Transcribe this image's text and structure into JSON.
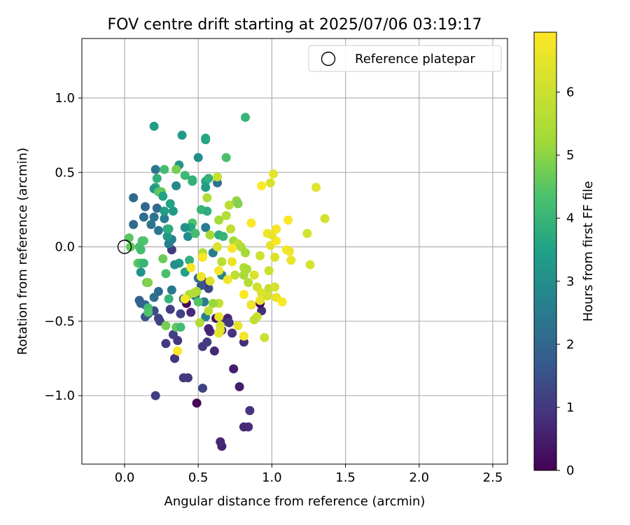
{
  "chart_data": {
    "type": "scatter",
    "title": "FOV centre drift starting at 2025/07/06 03:19:17",
    "xlabel": "Angular distance from reference (arcmin)",
    "ylabel": "Rotation from reference (arcmin)",
    "xlim": [
      -0.29,
      2.6
    ],
    "ylim": [
      -1.46,
      1.4
    ],
    "xticks": [
      0.0,
      0.5,
      1.0,
      1.5,
      2.0,
      2.5
    ],
    "xtick_labels": [
      "0.0",
      "0.5",
      "1.0",
      "1.5",
      "2.0",
      "2.5"
    ],
    "yticks": [
      -1.0,
      -0.5,
      0.0,
      0.5,
      1.0
    ],
    "ytick_labels": [
      "−1.0",
      "−0.5",
      "0.0",
      "0.5",
      "1.0"
    ],
    "grid": true,
    "legend": {
      "position": "top-right",
      "entries": [
        "Reference platepar"
      ]
    },
    "reference_point": {
      "x": 0.0,
      "y": 0.0,
      "label": "Reference platepar"
    },
    "colorbar": {
      "label": "Hours from first FF file",
      "range": [
        0,
        6.95
      ],
      "ticks": [
        0,
        1,
        2,
        3,
        4,
        5,
        6
      ],
      "tick_labels": [
        "0",
        "1",
        "2",
        "3",
        "4",
        "5",
        "6"
      ],
      "colormap": "viridis"
    },
    "points": [
      {
        "x": 0.49,
        "y": -1.05,
        "c": 0.1
      },
      {
        "x": 0.66,
        "y": -1.34,
        "c": 0.6
      },
      {
        "x": 0.65,
        "y": -1.31,
        "c": 0.7
      },
      {
        "x": 0.84,
        "y": -1.21,
        "c": 0.8
      },
      {
        "x": 0.81,
        "y": -1.21,
        "c": 0.7
      },
      {
        "x": 0.85,
        "y": -1.1,
        "c": 0.9
      },
      {
        "x": 0.78,
        "y": -0.94,
        "c": 0.5
      },
      {
        "x": 0.74,
        "y": -0.82,
        "c": 0.5
      },
      {
        "x": 0.53,
        "y": -0.95,
        "c": 1.2
      },
      {
        "x": 0.21,
        "y": -1.0,
        "c": 1.1
      },
      {
        "x": 0.4,
        "y": -0.88,
        "c": 1.0
      },
      {
        "x": 0.43,
        "y": -0.88,
        "c": 1.0
      },
      {
        "x": 0.34,
        "y": -0.75,
        "c": 0.9
      },
      {
        "x": 0.36,
        "y": -0.63,
        "c": 1.0
      },
      {
        "x": 0.28,
        "y": -0.65,
        "c": 1.0
      },
      {
        "x": 0.33,
        "y": -0.59,
        "c": 1.2
      },
      {
        "x": 0.61,
        "y": -0.7,
        "c": 0.7
      },
      {
        "x": 0.53,
        "y": -0.67,
        "c": 1.0
      },
      {
        "x": 0.56,
        "y": -0.64,
        "c": 1.1
      },
      {
        "x": 0.58,
        "y": -0.57,
        "c": 0.8
      },
      {
        "x": 0.57,
        "y": -0.55,
        "c": 0.6
      },
      {
        "x": 0.66,
        "y": -0.56,
        "c": 0.7
      },
      {
        "x": 0.73,
        "y": -0.58,
        "c": 0.9
      },
      {
        "x": 0.81,
        "y": -0.64,
        "c": 0.8
      },
      {
        "x": 0.62,
        "y": -0.48,
        "c": 0.3
      },
      {
        "x": 0.64,
        "y": -0.48,
        "c": 0.4
      },
      {
        "x": 0.7,
        "y": -0.48,
        "c": 0.6
      },
      {
        "x": 0.66,
        "y": -0.51,
        "c": 0.9
      },
      {
        "x": 0.71,
        "y": -0.51,
        "c": 1.0
      },
      {
        "x": 0.38,
        "y": -0.45,
        "c": 1.2
      },
      {
        "x": 0.45,
        "y": -0.44,
        "c": 0.7
      },
      {
        "x": 0.42,
        "y": -0.38,
        "c": 0.1
      },
      {
        "x": 0.31,
        "y": -0.42,
        "c": 1.1
      },
      {
        "x": 0.2,
        "y": -0.43,
        "c": 1.4
      },
      {
        "x": 0.23,
        "y": -0.48,
        "c": 1.3
      },
      {
        "x": 0.24,
        "y": -0.5,
        "c": 1.2
      },
      {
        "x": 0.14,
        "y": -0.47,
        "c": 1.6
      },
      {
        "x": 0.16,
        "y": -0.45,
        "c": 1.7
      },
      {
        "x": 0.1,
        "y": -0.36,
        "c": 1.8
      },
      {
        "x": 0.11,
        "y": -0.38,
        "c": 1.9
      },
      {
        "x": 0.14,
        "y": -0.39,
        "c": 2.0
      },
      {
        "x": 0.2,
        "y": -0.34,
        "c": 2.2
      },
      {
        "x": 0.23,
        "y": -0.3,
        "c": 2.1
      },
      {
        "x": 0.32,
        "y": -0.29,
        "c": 2.4
      },
      {
        "x": 0.4,
        "y": -0.35,
        "c": 1.9
      },
      {
        "x": 0.48,
        "y": -0.33,
        "c": 2.3
      },
      {
        "x": 0.54,
        "y": -0.37,
        "c": 2.5
      },
      {
        "x": 0.55,
        "y": -0.47,
        "c": 2.6
      },
      {
        "x": 0.93,
        "y": -0.43,
        "c": 0.8
      },
      {
        "x": 0.86,
        "y": -0.39,
        "c": 1.0
      },
      {
        "x": 0.92,
        "y": -0.38,
        "c": 0.2
      },
      {
        "x": 0.57,
        "y": -0.28,
        "c": 1.3
      },
      {
        "x": 0.55,
        "y": -0.24,
        "c": 0.9
      },
      {
        "x": 0.52,
        "y": -0.26,
        "c": 1.6
      },
      {
        "x": 0.5,
        "y": -0.21,
        "c": 2.2
      },
      {
        "x": 0.66,
        "y": -0.19,
        "c": 2.8
      },
      {
        "x": 0.6,
        "y": -0.04,
        "c": 2.5
      },
      {
        "x": 0.49,
        "y": -0.3,
        "c": 5.4
      },
      {
        "x": 0.44,
        "y": -0.09,
        "c": 3.9
      },
      {
        "x": 0.41,
        "y": -0.17,
        "c": 3.5
      },
      {
        "x": 0.37,
        "y": -0.11,
        "c": 3.3
      },
      {
        "x": 0.34,
        "y": -0.12,
        "c": 3.0
      },
      {
        "x": 0.32,
        "y": -0.02,
        "c": 1.0
      },
      {
        "x": 0.3,
        "y": 0.02,
        "c": 2.5
      },
      {
        "x": 0.32,
        "y": 0.05,
        "c": 2.7
      },
      {
        "x": 0.29,
        "y": 0.07,
        "c": 3.2
      },
      {
        "x": 0.23,
        "y": 0.11,
        "c": 2.4
      },
      {
        "x": 0.18,
        "y": 0.15,
        "c": 2.3
      },
      {
        "x": 0.13,
        "y": 0.2,
        "c": 2.2
      },
      {
        "x": 0.2,
        "y": 0.2,
        "c": 2.3
      },
      {
        "x": 0.14,
        "y": 0.27,
        "c": 2.0
      },
      {
        "x": 0.22,
        "y": 0.26,
        "c": 2.1
      },
      {
        "x": 0.27,
        "y": 0.19,
        "c": 2.6
      },
      {
        "x": 0.29,
        "y": 0.12,
        "c": 3.6
      },
      {
        "x": 0.3,
        "y": 0.12,
        "c": 3.8
      },
      {
        "x": 0.33,
        "y": 0.24,
        "c": 3.3
      },
      {
        "x": 0.31,
        "y": 0.29,
        "c": 3.5
      },
      {
        "x": 0.27,
        "y": 0.24,
        "c": 3.4
      },
      {
        "x": 0.06,
        "y": 0.15,
        "c": 2.1
      },
      {
        "x": 0.06,
        "y": 0.33,
        "c": 2.1
      },
      {
        "x": 0.12,
        "y": 0.04,
        "c": 4.1
      },
      {
        "x": 0.13,
        "y": 0.04,
        "c": 4.4
      },
      {
        "x": 0.1,
        "y": 0.0,
        "c": 4.3
      },
      {
        "x": 0.11,
        "y": -0.02,
        "c": 4.2
      },
      {
        "x": 0.04,
        "y": 0.0,
        "c": 4.6
      },
      {
        "x": 0.03,
        "y": 0.06,
        "c": 4.5
      },
      {
        "x": 0.09,
        "y": -0.11,
        "c": 4.6
      },
      {
        "x": 0.11,
        "y": -0.11,
        "c": 4.3
      },
      {
        "x": 0.13,
        "y": -0.11,
        "c": 4.0
      },
      {
        "x": 0.11,
        "y": -0.17,
        "c": 3.1
      },
      {
        "x": 0.15,
        "y": -0.24,
        "c": 4.7
      },
      {
        "x": 0.16,
        "y": -0.24,
        "c": 4.9
      },
      {
        "x": 0.26,
        "y": -0.08,
        "c": 4.7
      },
      {
        "x": 0.28,
        "y": -0.18,
        "c": 4.3
      },
      {
        "x": 0.16,
        "y": -0.41,
        "c": 4.2
      },
      {
        "x": 0.16,
        "y": -0.44,
        "c": 4.4
      },
      {
        "x": 0.3,
        "y": -0.35,
        "c": 4.0
      },
      {
        "x": 0.35,
        "y": -0.54,
        "c": 4.6
      },
      {
        "x": 0.38,
        "y": -0.54,
        "c": 4.2
      },
      {
        "x": 0.44,
        "y": -0.32,
        "c": 5.4
      },
      {
        "x": 0.47,
        "y": -0.31,
        "c": 5.6
      },
      {
        "x": 0.5,
        "y": -0.37,
        "c": 4.4
      },
      {
        "x": 0.2,
        "y": 0.81,
        "c": 3.4
      },
      {
        "x": 0.39,
        "y": 0.75,
        "c": 3.3
      },
      {
        "x": 0.55,
        "y": 0.72,
        "c": 3.4
      },
      {
        "x": 0.55,
        "y": 0.73,
        "c": 3.6
      },
      {
        "x": 0.82,
        "y": 0.87,
        "c": 4.0
      },
      {
        "x": 0.69,
        "y": 0.6,
        "c": 4.3
      },
      {
        "x": 0.5,
        "y": 0.6,
        "c": 3.0
      },
      {
        "x": 0.37,
        "y": 0.55,
        "c": 3.2
      },
      {
        "x": 0.21,
        "y": 0.52,
        "c": 2.4
      },
      {
        "x": 0.27,
        "y": 0.52,
        "c": 4.2
      },
      {
        "x": 0.35,
        "y": 0.52,
        "c": 4.8
      },
      {
        "x": 0.41,
        "y": 0.48,
        "c": 4.1
      },
      {
        "x": 0.46,
        "y": 0.45,
        "c": 3.8
      },
      {
        "x": 0.46,
        "y": 0.44,
        "c": 3.9
      },
      {
        "x": 0.55,
        "y": 0.44,
        "c": 3.6
      },
      {
        "x": 0.57,
        "y": 0.46,
        "c": 3.9
      },
      {
        "x": 0.63,
        "y": 0.43,
        "c": 2.3
      },
      {
        "x": 0.55,
        "y": 0.4,
        "c": 3.3
      },
      {
        "x": 0.63,
        "y": 0.47,
        "c": 5.9
      },
      {
        "x": 0.22,
        "y": 0.46,
        "c": 3.8
      },
      {
        "x": 0.21,
        "y": 0.4,
        "c": 3.9
      },
      {
        "x": 0.2,
        "y": 0.39,
        "c": 3.2
      },
      {
        "x": 0.23,
        "y": 0.37,
        "c": 4.4
      },
      {
        "x": 0.25,
        "y": 0.37,
        "c": 4.6
      },
      {
        "x": 0.26,
        "y": 0.34,
        "c": 3.5
      },
      {
        "x": 0.35,
        "y": 0.41,
        "c": 2.9
      },
      {
        "x": 0.56,
        "y": 0.33,
        "c": 5.5
      },
      {
        "x": 0.52,
        "y": 0.25,
        "c": 4.0
      },
      {
        "x": 0.56,
        "y": 0.24,
        "c": 3.8
      },
      {
        "x": 0.55,
        "y": 0.13,
        "c": 2.5
      },
      {
        "x": 0.46,
        "y": 0.16,
        "c": 4.4
      },
      {
        "x": 0.45,
        "y": 0.13,
        "c": 3.6
      },
      {
        "x": 0.41,
        "y": 0.13,
        "c": 3.1
      },
      {
        "x": 0.43,
        "y": 0.07,
        "c": 3.0
      },
      {
        "x": 0.48,
        "y": 0.09,
        "c": 4.2
      },
      {
        "x": 0.53,
        "y": -0.04,
        "c": 5.5
      },
      {
        "x": 0.58,
        "y": 0.08,
        "c": 5.3
      },
      {
        "x": 0.64,
        "y": 0.08,
        "c": 3.8
      },
      {
        "x": 0.67,
        "y": 0.07,
        "c": 4.0
      },
      {
        "x": 0.64,
        "y": 0.18,
        "c": 5.3
      },
      {
        "x": 0.69,
        "y": 0.21,
        "c": 5.6
      },
      {
        "x": 0.71,
        "y": 0.28,
        "c": 5.7
      },
      {
        "x": 0.76,
        "y": 0.31,
        "c": 5.1
      },
      {
        "x": 0.77,
        "y": 0.29,
        "c": 4.9
      },
      {
        "x": 0.72,
        "y": 0.12,
        "c": 5.8
      },
      {
        "x": 0.74,
        "y": 0.04,
        "c": 5.2
      },
      {
        "x": 0.77,
        "y": 0.02,
        "c": 5.8
      },
      {
        "x": 0.79,
        "y": 0.0,
        "c": 5.5
      },
      {
        "x": 0.82,
        "y": -0.04,
        "c": 5.3
      },
      {
        "x": 0.73,
        "y": -0.01,
        "c": 6.9
      },
      {
        "x": 0.63,
        "y": 0.0,
        "c": 6.3
      },
      {
        "x": 0.66,
        "y": -0.1,
        "c": 5.7
      },
      {
        "x": 0.73,
        "y": -0.1,
        "c": 6.6
      },
      {
        "x": 0.75,
        "y": -0.19,
        "c": 5.8
      },
      {
        "x": 0.7,
        "y": -0.22,
        "c": 6.7
      },
      {
        "x": 0.64,
        "y": -0.16,
        "c": 6.8
      },
      {
        "x": 0.53,
        "y": -0.07,
        "c": 6.9
      },
      {
        "x": 0.45,
        "y": -0.14,
        "c": 6.8
      },
      {
        "x": 0.52,
        "y": -0.2,
        "c": 6.7
      },
      {
        "x": 0.58,
        "y": -0.23,
        "c": 6.3
      },
      {
        "x": 0.81,
        "y": -0.14,
        "c": 5.6
      },
      {
        "x": 0.83,
        "y": -0.15,
        "c": 5.4
      },
      {
        "x": 0.81,
        "y": -0.19,
        "c": 5.4
      },
      {
        "x": 0.84,
        "y": -0.24,
        "c": 5.6
      },
      {
        "x": 0.88,
        "y": -0.19,
        "c": 6.3
      },
      {
        "x": 0.9,
        "y": -0.27,
        "c": 6.1
      },
      {
        "x": 0.93,
        "y": -0.31,
        "c": 6.3
      },
      {
        "x": 0.98,
        "y": -0.28,
        "c": 5.9
      },
      {
        "x": 0.97,
        "y": -0.33,
        "c": 6.2
      },
      {
        "x": 1.02,
        "y": -0.27,
        "c": 6.2
      },
      {
        "x": 1.03,
        "y": -0.34,
        "c": 6.6
      },
      {
        "x": 1.07,
        "y": -0.37,
        "c": 6.9
      },
      {
        "x": 0.81,
        "y": -0.32,
        "c": 6.9
      },
      {
        "x": 0.86,
        "y": -0.39,
        "c": 6.7
      },
      {
        "x": 0.92,
        "y": -0.36,
        "c": 6.6
      },
      {
        "x": 0.9,
        "y": -0.47,
        "c": 6.0
      },
      {
        "x": 0.88,
        "y": -0.49,
        "c": 5.8
      },
      {
        "x": 0.95,
        "y": -0.61,
        "c": 6.0
      },
      {
        "x": 0.81,
        "y": -0.6,
        "c": 6.8
      },
      {
        "x": 0.77,
        "y": -0.53,
        "c": 6.5
      },
      {
        "x": 0.65,
        "y": -0.53,
        "c": 6.2
      },
      {
        "x": 0.65,
        "y": -0.56,
        "c": 6.3
      },
      {
        "x": 0.64,
        "y": -0.58,
        "c": 6.5
      },
      {
        "x": 0.64,
        "y": -0.47,
        "c": 6.6
      },
      {
        "x": 0.64,
        "y": -0.38,
        "c": 5.9
      },
      {
        "x": 0.6,
        "y": -0.38,
        "c": 5.1
      },
      {
        "x": 0.57,
        "y": -0.43,
        "c": 5.8
      },
      {
        "x": 0.51,
        "y": -0.51,
        "c": 5.5
      },
      {
        "x": 0.36,
        "y": -0.7,
        "c": 6.9
      },
      {
        "x": 0.28,
        "y": -0.53,
        "c": 4.8
      },
      {
        "x": 0.41,
        "y": -0.35,
        "c": 6.8
      },
      {
        "x": 0.92,
        "y": -0.06,
        "c": 6.1
      },
      {
        "x": 0.98,
        "y": -0.16,
        "c": 6.0
      },
      {
        "x": 1.02,
        "y": -0.07,
        "c": 6.3
      },
      {
        "x": 0.99,
        "y": 0.01,
        "c": 6.5
      },
      {
        "x": 1.03,
        "y": 0.04,
        "c": 6.9
      },
      {
        "x": 1.1,
        "y": -0.02,
        "c": 6.8
      },
      {
        "x": 1.12,
        "y": -0.03,
        "c": 6.7
      },
      {
        "x": 1.13,
        "y": -0.09,
        "c": 6.6
      },
      {
        "x": 1.26,
        "y": -0.12,
        "c": 6.2
      },
      {
        "x": 1.24,
        "y": 0.09,
        "c": 6.1
      },
      {
        "x": 0.97,
        "y": 0.09,
        "c": 6.7
      },
      {
        "x": 1.0,
        "y": 0.08,
        "c": 6.6
      },
      {
        "x": 1.03,
        "y": 0.12,
        "c": 6.8
      },
      {
        "x": 1.11,
        "y": 0.18,
        "c": 6.9
      },
      {
        "x": 0.86,
        "y": 0.16,
        "c": 6.9
      },
      {
        "x": 0.93,
        "y": 0.41,
        "c": 6.9
      },
      {
        "x": 0.99,
        "y": 0.43,
        "c": 6.3
      },
      {
        "x": 1.01,
        "y": 0.49,
        "c": 6.5
      },
      {
        "x": 1.3,
        "y": 0.4,
        "c": 6.4
      },
      {
        "x": 1.36,
        "y": 0.19,
        "c": 6.2
      }
    ]
  }
}
